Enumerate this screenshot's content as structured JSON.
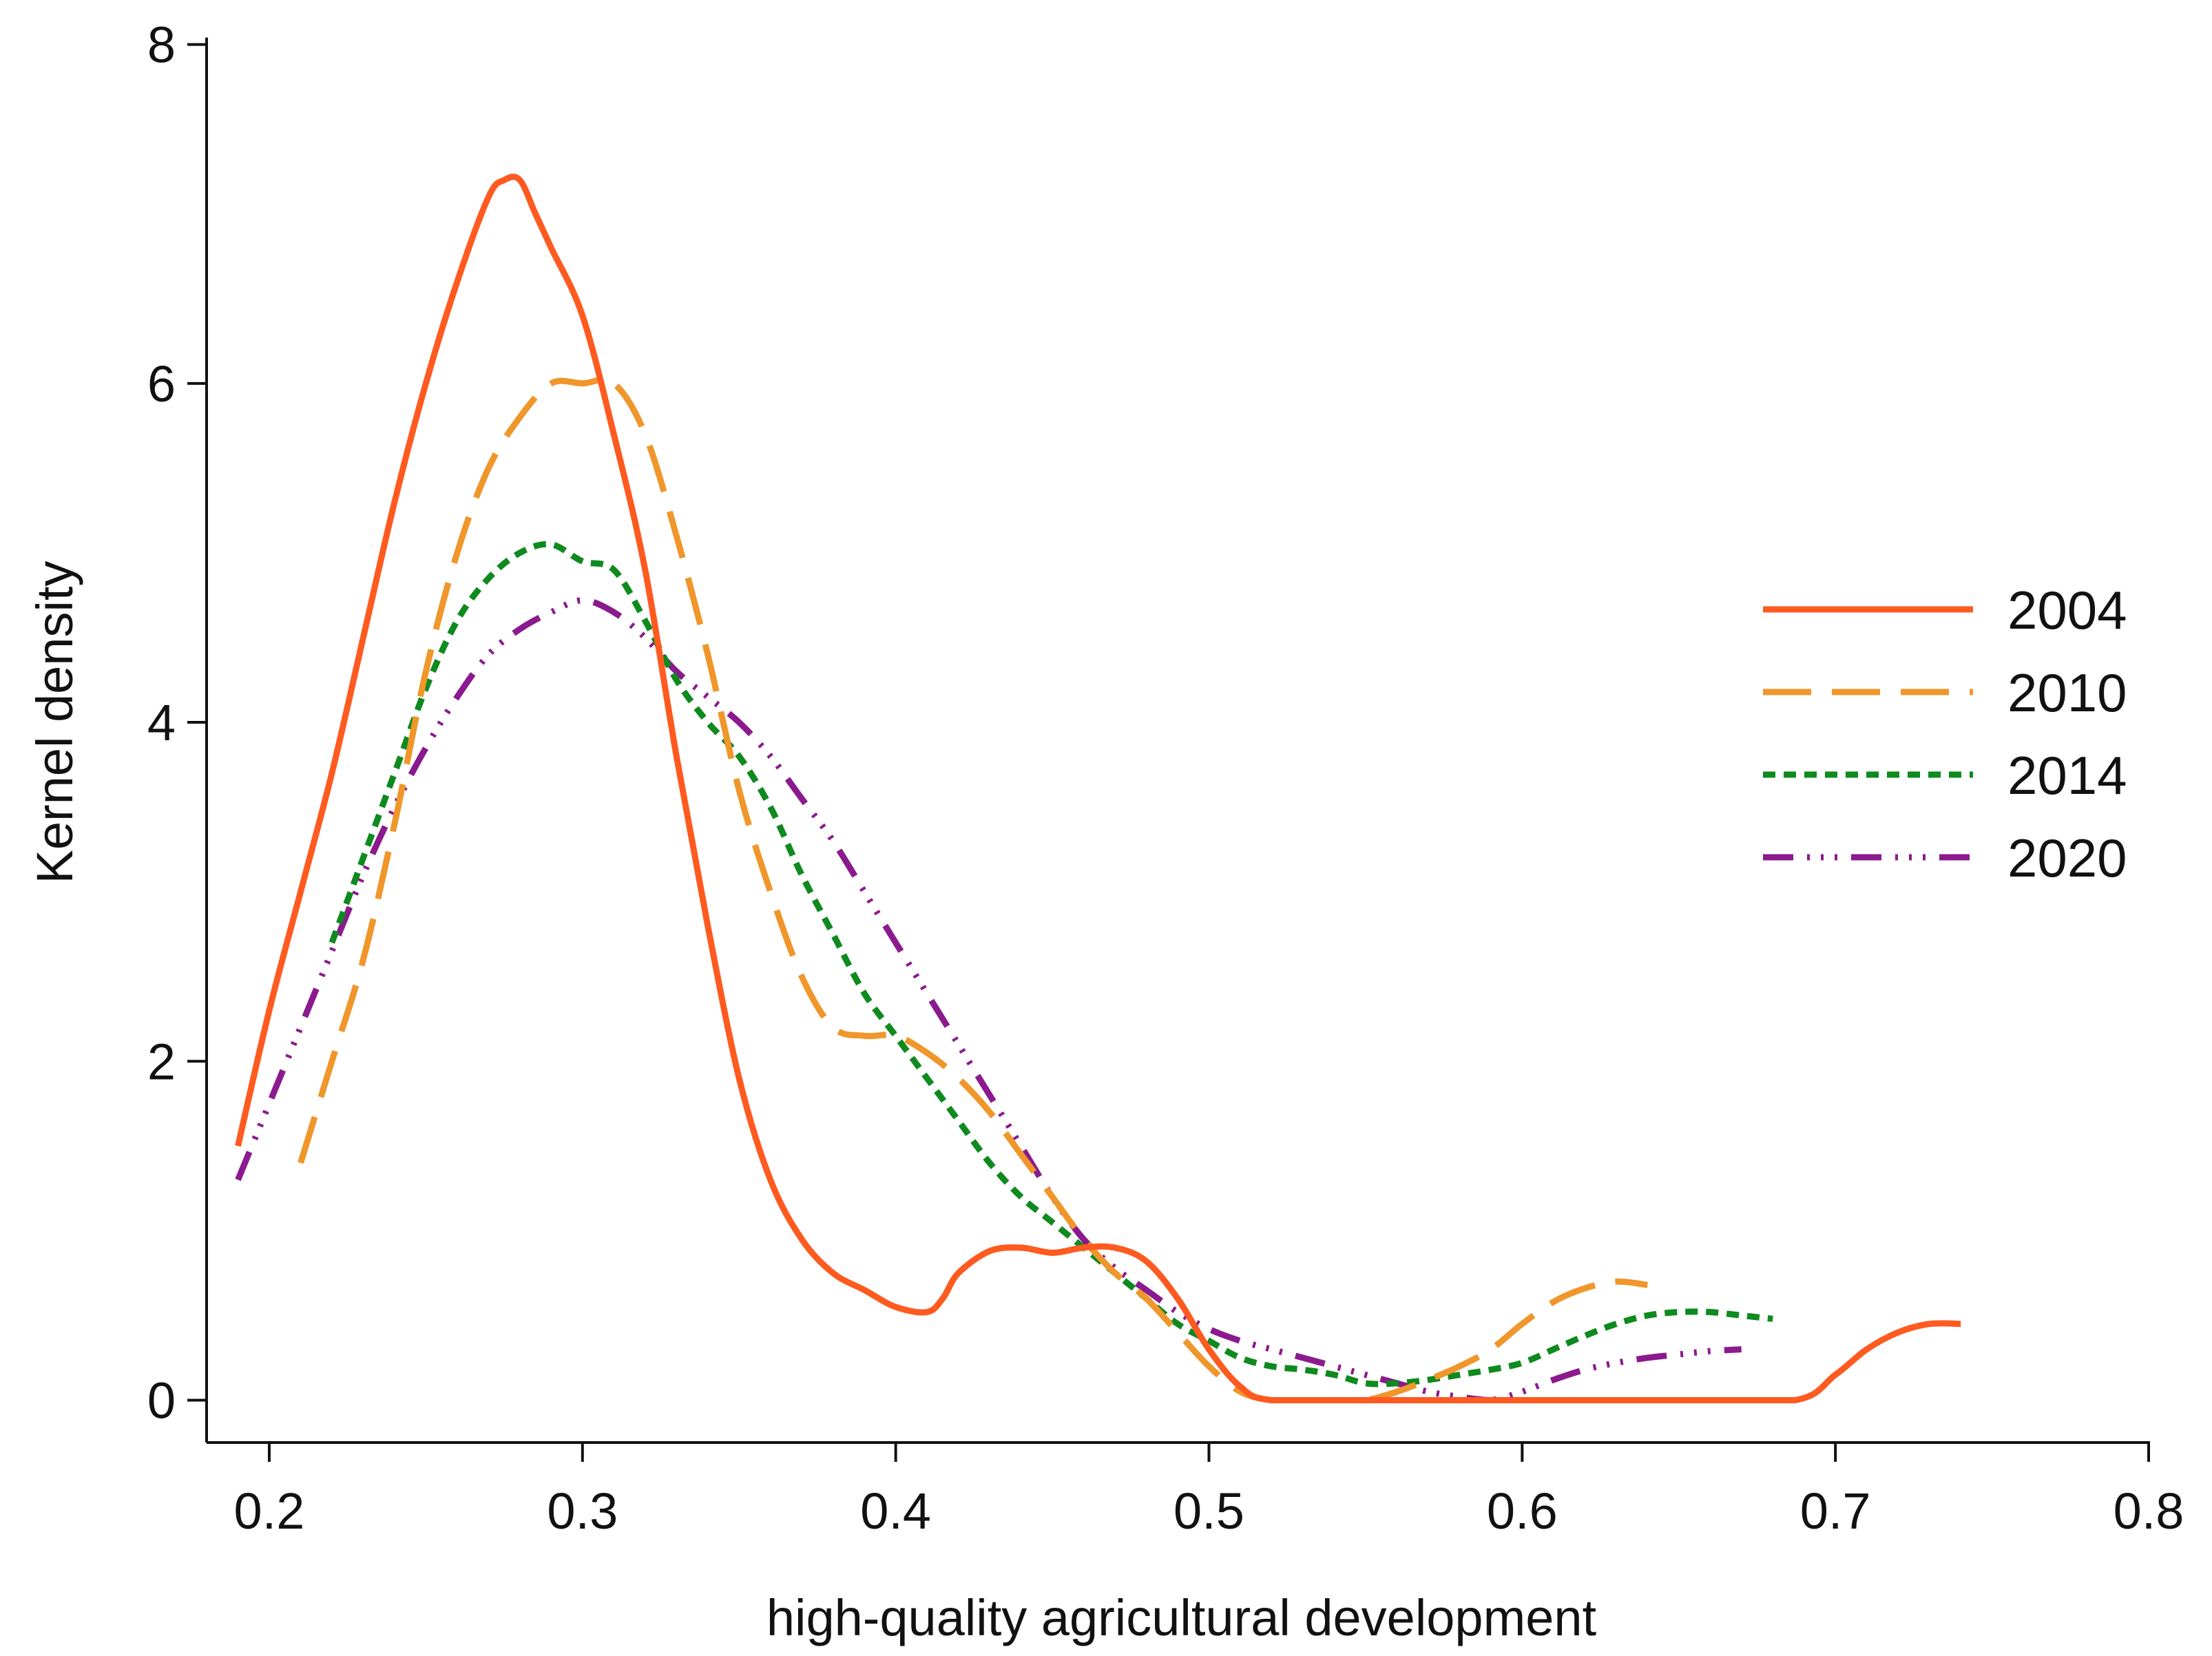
{
  "chart_data": {
    "type": "line",
    "title": "",
    "xlabel": "high-quality agricultural development",
    "ylabel": "Kernel density",
    "xlim": [
      0.18,
      0.8
    ],
    "ylim": [
      -0.25,
      8.1
    ],
    "xticks": [
      0.2,
      0.3,
      0.4,
      0.5,
      0.6,
      0.7,
      0.8
    ],
    "xtick_labels": [
      "0.2",
      "0.3",
      "0.4",
      "0.5",
      "0.6",
      "0.7",
      "0.8"
    ],
    "yticks": [
      0,
      2,
      4,
      6,
      8
    ],
    "ytick_labels": [
      "0",
      "2",
      "4",
      "6",
      "8"
    ],
    "grid": false,
    "legend": {
      "placement": "right"
    },
    "series": [
      {
        "name": "2004",
        "color": "#ff5a1f",
        "style": "solid",
        "x": [
          0.19,
          0.2,
          0.21,
          0.22,
          0.23,
          0.24,
          0.25,
          0.26,
          0.27,
          0.275,
          0.28,
          0.285,
          0.29,
          0.3,
          0.31,
          0.32,
          0.33,
          0.34,
          0.35,
          0.36,
          0.37,
          0.38,
          0.39,
          0.4,
          0.41,
          0.415,
          0.42,
          0.43,
          0.44,
          0.45,
          0.46,
          0.47,
          0.48,
          0.49,
          0.5,
          0.51,
          0.52,
          0.55,
          0.6,
          0.65,
          0.687,
          0.7,
          0.71,
          0.72,
          0.73,
          0.74
        ],
        "values": [
          1.5,
          2.3,
          3.0,
          3.7,
          4.5,
          5.3,
          6.0,
          6.6,
          7.1,
          7.2,
          7.2,
          7.0,
          6.8,
          6.4,
          5.7,
          4.9,
          3.8,
          2.8,
          1.9,
          1.3,
          0.95,
          0.75,
          0.65,
          0.55,
          0.52,
          0.6,
          0.75,
          0.88,
          0.9,
          0.87,
          0.9,
          0.9,
          0.82,
          0.6,
          0.3,
          0.08,
          0.0,
          0.0,
          0.0,
          0.0,
          0.0,
          0.15,
          0.3,
          0.4,
          0.45,
          0.45
        ]
      },
      {
        "name": "2010",
        "color": "#f0962a",
        "style": "longdash",
        "x": [
          0.21,
          0.22,
          0.23,
          0.24,
          0.25,
          0.26,
          0.27,
          0.28,
          0.29,
          0.3,
          0.31,
          0.32,
          0.33,
          0.34,
          0.35,
          0.36,
          0.37,
          0.38,
          0.39,
          0.4,
          0.41,
          0.42,
          0.43,
          0.44,
          0.45,
          0.46,
          0.47,
          0.48,
          0.49,
          0.5,
          0.51,
          0.52,
          0.53,
          0.54,
          0.55,
          0.56,
          0.57,
          0.58,
          0.59,
          0.6,
          0.61,
          0.62,
          0.63,
          0.64
        ],
        "values": [
          1.4,
          2.0,
          2.6,
          3.4,
          4.3,
          5.0,
          5.5,
          5.8,
          6.0,
          6.0,
          6.0,
          5.7,
          5.1,
          4.4,
          3.6,
          3.0,
          2.5,
          2.2,
          2.15,
          2.15,
          2.05,
          1.9,
          1.7,
          1.45,
          1.2,
          0.95,
          0.75,
          0.6,
          0.4,
          0.2,
          0.05,
          0.0,
          0.0,
          0.0,
          0.0,
          0.05,
          0.12,
          0.2,
          0.3,
          0.45,
          0.58,
          0.66,
          0.7,
          0.68
        ]
      },
      {
        "name": "2014",
        "color": "#0e8a1e",
        "style": "shortdash",
        "x": [
          0.22,
          0.23,
          0.24,
          0.25,
          0.26,
          0.27,
          0.28,
          0.29,
          0.3,
          0.31,
          0.32,
          0.33,
          0.34,
          0.35,
          0.36,
          0.37,
          0.38,
          0.39,
          0.4,
          0.41,
          0.42,
          0.43,
          0.44,
          0.45,
          0.46,
          0.47,
          0.48,
          0.49,
          0.5,
          0.51,
          0.52,
          0.53,
          0.54,
          0.55,
          0.56,
          0.57,
          0.58,
          0.59,
          0.6,
          0.61,
          0.62,
          0.63,
          0.64,
          0.65,
          0.66,
          0.67,
          0.68
        ],
        "values": [
          2.7,
          3.2,
          3.7,
          4.2,
          4.6,
          4.85,
          5.0,
          5.05,
          4.95,
          4.9,
          4.6,
          4.25,
          4.0,
          3.8,
          3.5,
          3.1,
          2.75,
          2.4,
          2.15,
          1.9,
          1.65,
          1.4,
          1.2,
          1.05,
          0.9,
          0.75,
          0.6,
          0.45,
          0.35,
          0.25,
          0.2,
          0.18,
          0.15,
          0.1,
          0.1,
          0.12,
          0.15,
          0.18,
          0.22,
          0.3,
          0.38,
          0.45,
          0.5,
          0.52,
          0.52,
          0.5,
          0.48
        ]
      },
      {
        "name": "2020",
        "color": "#8b1a8e",
        "style": "dashdot",
        "x": [
          0.19,
          0.2,
          0.21,
          0.22,
          0.23,
          0.24,
          0.25,
          0.26,
          0.27,
          0.28,
          0.29,
          0.3,
          0.31,
          0.32,
          0.33,
          0.34,
          0.35,
          0.36,
          0.37,
          0.38,
          0.39,
          0.4,
          0.41,
          0.42,
          0.43,
          0.44,
          0.45,
          0.46,
          0.47,
          0.48,
          0.49,
          0.5,
          0.51,
          0.52,
          0.53,
          0.54,
          0.55,
          0.56,
          0.57,
          0.58,
          0.59,
          0.6,
          0.61,
          0.62,
          0.63,
          0.64,
          0.65,
          0.66,
          0.67
        ],
        "values": [
          1.3,
          1.75,
          2.2,
          2.65,
          3.1,
          3.5,
          3.85,
          4.15,
          4.4,
          4.55,
          4.65,
          4.72,
          4.65,
          4.5,
          4.3,
          4.15,
          4.0,
          3.8,
          3.55,
          3.3,
          3.0,
          2.7,
          2.4,
          2.1,
          1.8,
          1.5,
          1.2,
          0.95,
          0.78,
          0.65,
          0.52,
          0.42,
          0.35,
          0.3,
          0.25,
          0.2,
          0.15,
          0.1,
          0.05,
          0.02,
          0.0,
          0.05,
          0.12,
          0.18,
          0.22,
          0.25,
          0.27,
          0.29,
          0.3
        ]
      }
    ]
  }
}
